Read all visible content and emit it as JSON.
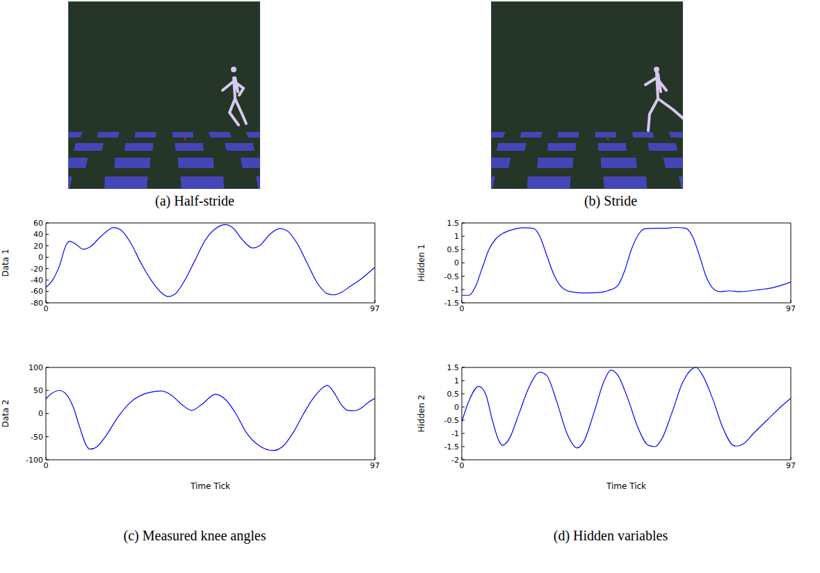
{
  "panel_captions": [
    "(a) Half-stride",
    "(b) Stride",
    "(c) Measured knee angles",
    "(d) Hidden variables"
  ],
  "chart_data": [
    {
      "type": "line",
      "ylabel": "Data 1",
      "color": "#0000ff",
      "line_style": "solid",
      "grid": false,
      "xlim": [
        0,
        97
      ],
      "xticks": [
        0,
        97
      ],
      "ylim": [
        -80,
        60
      ],
      "yticks": [
        -80,
        -60,
        -40,
        -20,
        0,
        20,
        40,
        60
      ],
      "x": [
        0,
        2,
        4,
        6,
        7,
        9,
        11,
        13,
        16,
        20,
        22,
        25,
        28,
        31,
        34,
        36,
        38,
        41,
        44,
        47,
        50,
        53,
        55,
        58,
        61,
        63,
        66,
        69,
        71,
        74,
        77,
        80,
        83,
        85,
        87,
        90,
        93,
        95,
        97
      ],
      "values": [
        -53,
        -40,
        -15,
        22,
        28,
        22,
        14,
        18,
        35,
        52,
        48,
        25,
        -10,
        -40,
        -62,
        -69,
        -65,
        -40,
        -5,
        30,
        50,
        57,
        52,
        30,
        16,
        20,
        40,
        50,
        47,
        25,
        -10,
        -45,
        -64,
        -66,
        -62,
        -50,
        -38,
        -28,
        -18
      ]
    },
    {
      "type": "line",
      "ylabel": "Hidden 1",
      "color": "#0000ff",
      "line_style": "solid",
      "grid": false,
      "xlim": [
        0,
        97
      ],
      "xticks": [
        0,
        97
      ],
      "ylim": [
        -1.5,
        1.5
      ],
      "yticks": [
        -1.5,
        -1,
        -0.5,
        0,
        0.5,
        1,
        1.5
      ],
      "x": [
        0,
        2,
        4,
        6,
        8,
        10,
        12,
        15,
        18,
        21,
        23,
        25,
        27,
        29,
        32,
        36,
        40,
        43,
        46,
        48,
        50,
        52,
        54,
        57,
        60,
        63,
        66,
        68,
        70,
        72,
        74,
        76,
        79,
        82,
        85,
        88,
        91,
        94,
        97
      ],
      "values": [
        -1.22,
        -1.22,
        -0.9,
        -0.2,
        0.5,
        0.9,
        1.1,
        1.25,
        1.32,
        1.3,
        1.0,
        0.3,
        -0.4,
        -0.85,
        -1.08,
        -1.13,
        -1.12,
        -1.05,
        -0.85,
        -0.3,
        0.5,
        1.05,
        1.28,
        1.3,
        1.3,
        1.33,
        1.3,
        1.0,
        0.3,
        -0.5,
        -0.95,
        -1.08,
        -1.05,
        -1.08,
        -1.05,
        -1.0,
        -0.95,
        -0.85,
        -0.72
      ]
    },
    {
      "type": "line",
      "ylabel": "Data 2",
      "xlabel": "Time Tick",
      "color": "#0000ff",
      "line_style": "solid",
      "grid": false,
      "xlim": [
        0,
        97
      ],
      "xticks": [
        0,
        97
      ],
      "ylim": [
        -100,
        100
      ],
      "yticks": [
        -100,
        -50,
        0,
        50,
        100
      ],
      "x": [
        0,
        2,
        4,
        6,
        8,
        10,
        12,
        13,
        15,
        18,
        21,
        25,
        30,
        34,
        37,
        40,
        43,
        46,
        50,
        53,
        56,
        59,
        63,
        67,
        70,
        73,
        76,
        79,
        82,
        83,
        85,
        87,
        89,
        91,
        93,
        95,
        97
      ],
      "values": [
        32,
        45,
        50,
        42,
        15,
        -30,
        -70,
        -77,
        -72,
        -45,
        -10,
        25,
        45,
        49,
        40,
        20,
        7,
        20,
        42,
        30,
        0,
        -40,
        -70,
        -80,
        -70,
        -40,
        0,
        35,
        58,
        61,
        45,
        20,
        7,
        6,
        12,
        24,
        33
      ]
    },
    {
      "type": "line",
      "ylabel": "Hidden 2",
      "xlabel": "Time Tick",
      "color": "#0000ff",
      "line_style": "solid",
      "grid": false,
      "xlim": [
        0,
        97
      ],
      "xticks": [
        0,
        97
      ],
      "ylim": [
        -2,
        1.5
      ],
      "yticks": [
        -2,
        -1.5,
        -1,
        -0.5,
        0,
        0.5,
        1,
        1.5
      ],
      "x": [
        0,
        2,
        5,
        7,
        9,
        11,
        12,
        14,
        17,
        20,
        23,
        25,
        28,
        31,
        34,
        36,
        39,
        42,
        44,
        46,
        49,
        52,
        55,
        57,
        59,
        62,
        65,
        68,
        69,
        71,
        74,
        77,
        80,
        81,
        83,
        86,
        90,
        94,
        97
      ],
      "values": [
        -0.55,
        0.2,
        0.78,
        0.5,
        -0.5,
        -1.3,
        -1.45,
        -1.2,
        -0.2,
        0.8,
        1.32,
        1.2,
        0.2,
        -1.0,
        -1.55,
        -1.3,
        -0.2,
        1.0,
        1.4,
        1.2,
        0.3,
        -0.8,
        -1.45,
        -1.5,
        -1.2,
        -0.2,
        0.9,
        1.45,
        1.5,
        1.2,
        0.3,
        -0.8,
        -1.45,
        -1.48,
        -1.4,
        -1.0,
        -0.5,
        0,
        0.33
      ]
    }
  ]
}
